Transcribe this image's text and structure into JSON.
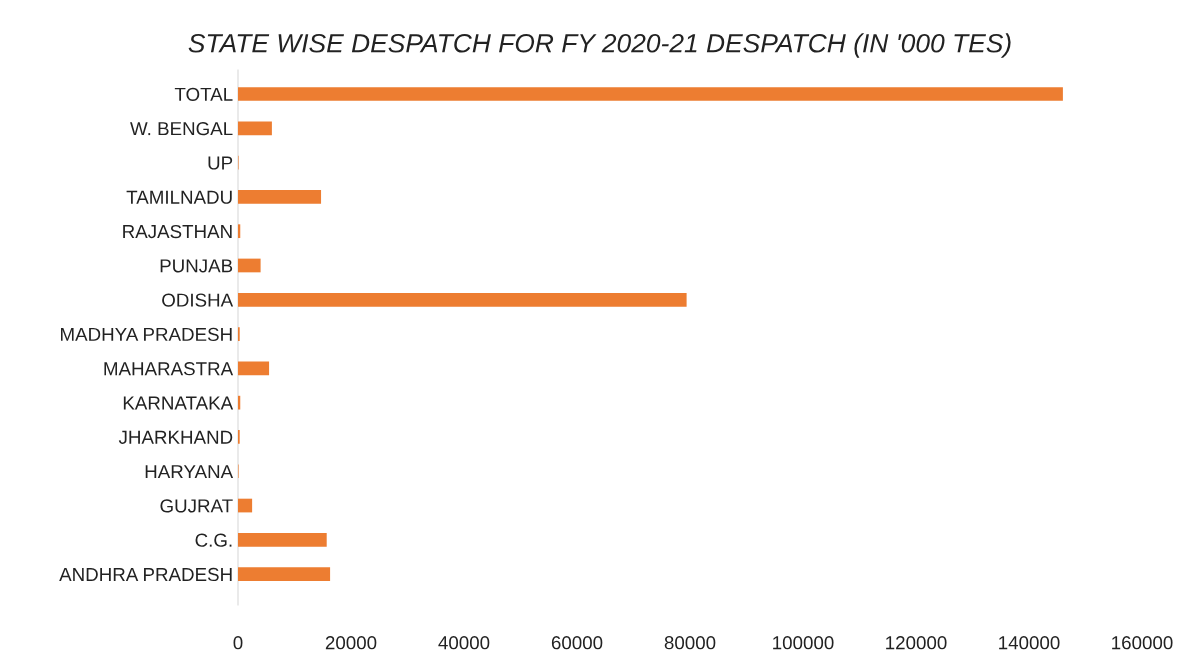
{
  "chart_data": {
    "type": "bar",
    "orientation": "horizontal",
    "title": "STATE WISE DESPATCH FOR FY 2020-21 DESPATCH (IN '000 TES)",
    "categories": [
      "TOTAL",
      "W. BENGAL",
      "UP",
      "TAMILNADU",
      "RAJASTHAN",
      "PUNJAB",
      "ODISHA",
      "MADHYA PRADESH",
      "MAHARASTRA",
      "KARNATAKA",
      "JHARKHAND",
      "HARYANA",
      "GUJRAT",
      "C.G.",
      "ANDHRA PRADESH"
    ],
    "values": [
      146000,
      6000,
      100,
      14700,
      400,
      4000,
      79400,
      300,
      5500,
      400,
      300,
      100,
      2500,
      15700,
      16300
    ],
    "color": "#ed7d31",
    "xlim": [
      0,
      160000
    ],
    "xticks": [
      0,
      20000,
      40000,
      60000,
      80000,
      100000,
      120000,
      140000,
      160000
    ],
    "grid": false
  }
}
